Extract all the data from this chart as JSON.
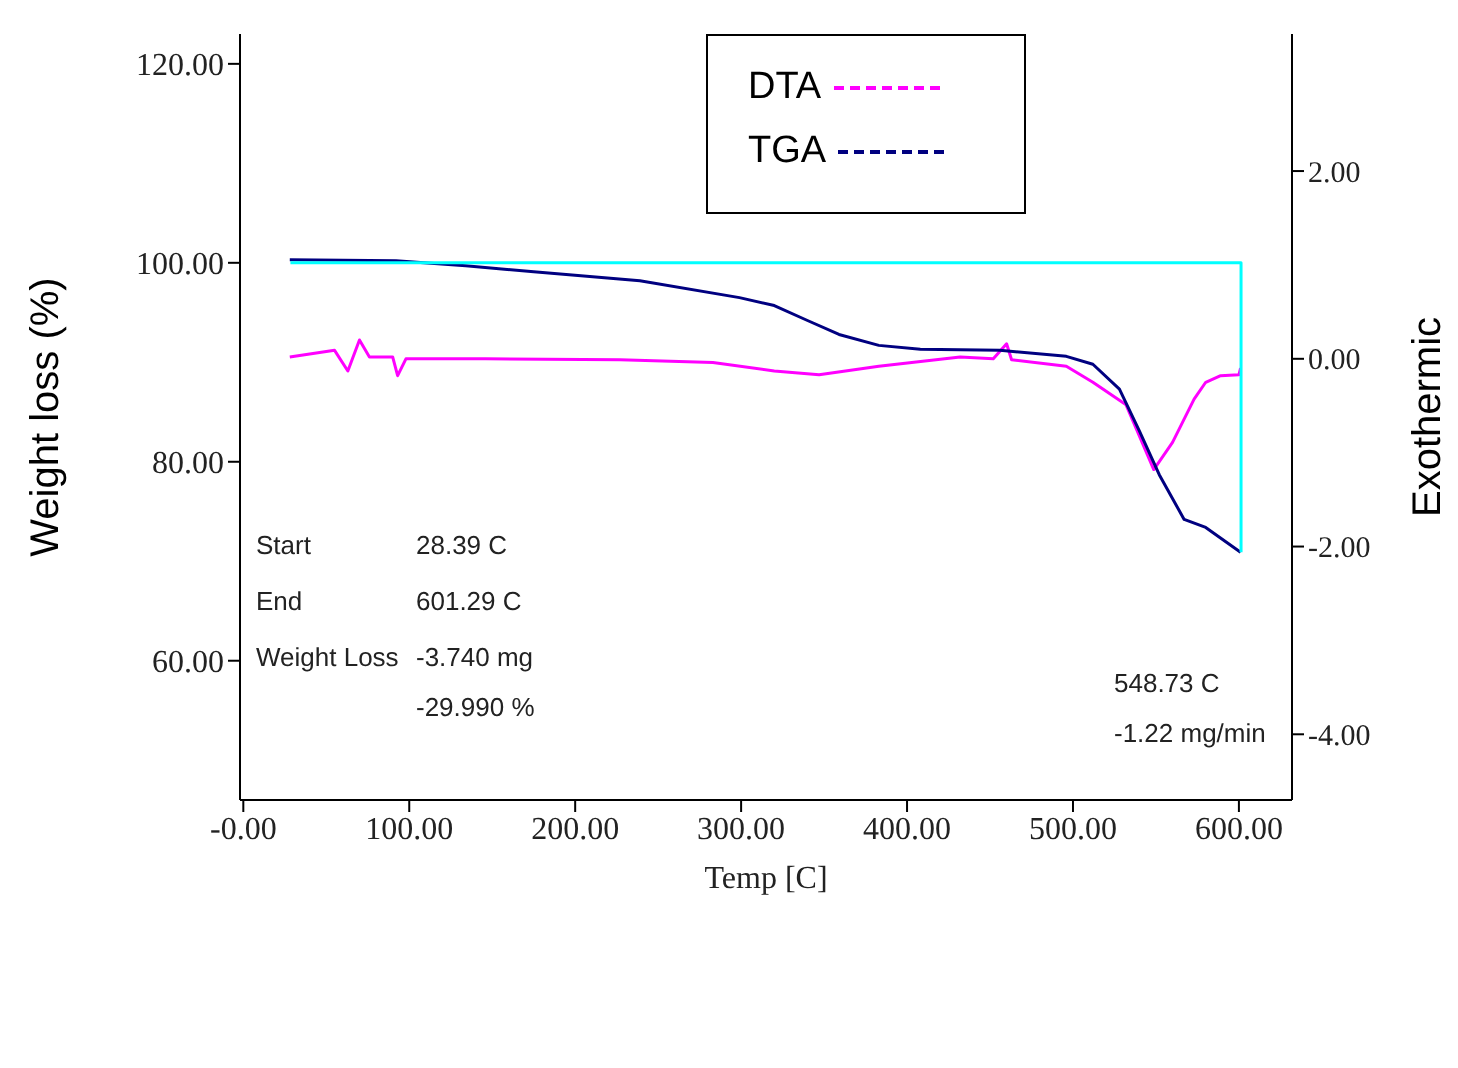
{
  "chart_data": {
    "type": "line",
    "xlabel": "Temp   [C]",
    "ylabel": "Weight loss (%)",
    "y2label": "Exothermic",
    "xlim": [
      -2,
      632
    ],
    "ylim": [
      46,
      123
    ],
    "y2lim": [
      -4.7,
      3.46
    ],
    "xticks": [
      {
        "value": 0,
        "label": "-0.00"
      },
      {
        "value": 100,
        "label": "100.00"
      },
      {
        "value": 200,
        "label": "200.00"
      },
      {
        "value": 300,
        "label": "300.00"
      },
      {
        "value": 400,
        "label": "400.00"
      },
      {
        "value": 500,
        "label": "500.00"
      },
      {
        "value": 600,
        "label": "600.00"
      }
    ],
    "yticks": [
      {
        "value": 60,
        "label": "60.00"
      },
      {
        "value": 80,
        "label": "80.00"
      },
      {
        "value": 100,
        "label": "100.00"
      },
      {
        "value": 120,
        "label": "120.00"
      }
    ],
    "y2ticks": [
      {
        "value": -4,
        "label": "-4.00"
      },
      {
        "value": -2,
        "label": "-2.00"
      },
      {
        "value": 0,
        "label": "0.00"
      },
      {
        "value": 2,
        "label": "2.00"
      }
    ],
    "grid": false,
    "legend": "top",
    "marker": "none",
    "line_style": "solid",
    "series": [
      {
        "name": "DTA",
        "color": "#ff00ff",
        "axis": "y2",
        "x": [
          28,
          55,
          63,
          70,
          76,
          90,
          93,
          98,
          146,
          227,
          283,
          320,
          347,
          383,
          432,
          452,
          460,
          463,
          496,
          512,
          532,
          548.7,
          560,
          573,
          580,
          589,
          600,
          601
        ],
        "values": [
          0.02,
          0.09,
          -0.13,
          0.2,
          0.02,
          0.02,
          -0.18,
          0.0,
          0.0,
          -0.01,
          -0.04,
          -0.13,
          -0.17,
          -0.08,
          0.02,
          0.0,
          0.16,
          -0.01,
          -0.08,
          -0.25,
          -0.49,
          -1.18,
          -0.89,
          -0.43,
          -0.25,
          -0.18,
          -0.17,
          -0.1
        ]
      },
      {
        "name": "TGA",
        "color": "#000080",
        "x": [
          28,
          92,
          134,
          175,
          239,
          299,
          320,
          340,
          359,
          383,
          408,
          456,
          496,
          512,
          528,
          540,
          552,
          567,
          580,
          601
        ],
        "values": [
          100.3,
          100.2,
          99.7,
          99.1,
          98.2,
          96.5,
          95.7,
          94.2,
          92.8,
          91.7,
          91.3,
          91.2,
          90.6,
          89.8,
          87.3,
          83.1,
          78.7,
          74.2,
          73.4,
          70.9
        ]
      },
      {
        "color": "#00ffff",
        "x": [
          28.39,
          601.29,
          601.29
        ],
        "values": [
          100,
          100,
          70.9
        ]
      }
    ],
    "annotations": [
      "Start",
      "28.39 C",
      "End",
      "601.29 C",
      "Weight Loss",
      "-3.740 mg",
      "-29.990 %",
      "548.73 C",
      "-1.22 mg/min"
    ]
  }
}
